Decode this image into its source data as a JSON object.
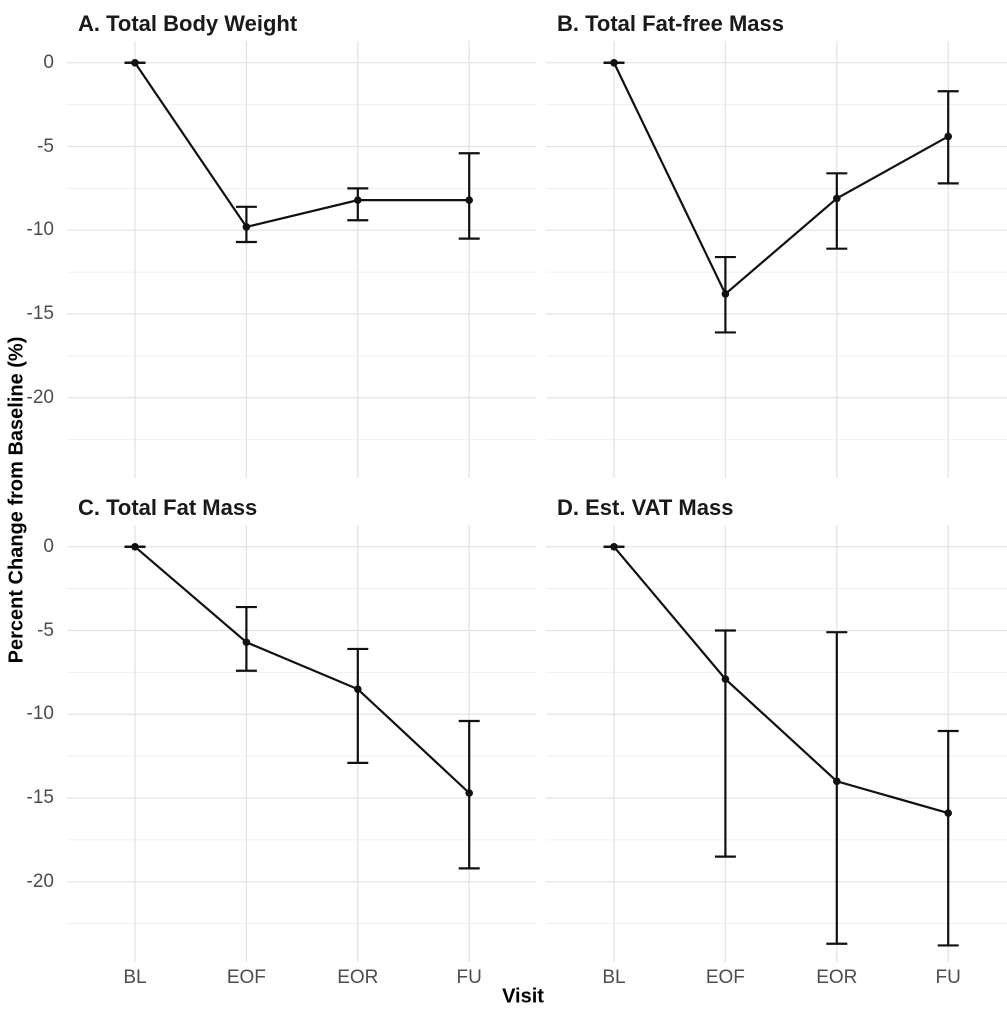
{
  "figure": {
    "y_axis_title": "Percent Change from Baseline (%)",
    "x_axis_title": "Visit",
    "x_tick_labels": [
      "BL",
      "EOF",
      "EOR",
      "FU"
    ],
    "y_tick_labels": [
      "0",
      "-5",
      "-10",
      "-15",
      "-20"
    ],
    "y_tick_values": [
      0,
      -5,
      -10,
      -15,
      -20
    ],
    "y_minor_values": [
      -2.5,
      -7.5,
      -12.5,
      -17.5,
      -22.5
    ]
  },
  "colors": {
    "background": "#ffffff",
    "grid_major": "#e4e4e4",
    "grid_minor": "#f1f1f1",
    "data": "#111111",
    "tick_label": "#4d4d4d",
    "title": "#1a1a1a"
  },
  "chart_data": [
    {
      "type": "line",
      "title": "A. Total Body Weight",
      "x": [
        "BL",
        "EOF",
        "EOR",
        "FU"
      ],
      "values": [
        0,
        -9.8,
        -8.2,
        -8.2
      ],
      "error_low": [
        0,
        -10.7,
        -9.4,
        -10.5
      ],
      "error_high": [
        0,
        -8.6,
        -7.5,
        -5.4
      ],
      "xlabel": "Visit",
      "ylabel": "Percent Change from Baseline (%)",
      "ylim": [
        -24.9,
        1.3
      ]
    },
    {
      "type": "line",
      "title": "B. Total Fat-free Mass",
      "x": [
        "BL",
        "EOF",
        "EOR",
        "FU"
      ],
      "values": [
        0,
        -13.8,
        -8.1,
        -4.4
      ],
      "error_low": [
        0,
        -16.1,
        -11.1,
        -7.2
      ],
      "error_high": [
        0,
        -11.6,
        -6.6,
        -1.7
      ],
      "xlabel": "Visit",
      "ylabel": "Percent Change from Baseline (%)",
      "ylim": [
        -24.9,
        1.3
      ]
    },
    {
      "type": "line",
      "title": "C. Total Fat Mass",
      "x": [
        "BL",
        "EOF",
        "EOR",
        "FU"
      ],
      "values": [
        0,
        -5.7,
        -8.5,
        -14.7
      ],
      "error_low": [
        0,
        -7.4,
        -12.9,
        -19.2
      ],
      "error_high": [
        0,
        -3.6,
        -6.1,
        -10.4
      ],
      "xlabel": "Visit",
      "ylabel": "Percent Change from Baseline (%)",
      "ylim": [
        -24.9,
        1.3
      ]
    },
    {
      "type": "line",
      "title": "D. Est. VAT Mass",
      "x": [
        "BL",
        "EOF",
        "EOR",
        "FU"
      ],
      "values": [
        0,
        -7.9,
        -14.0,
        -15.9
      ],
      "error_low": [
        0,
        -18.5,
        -23.7,
        -23.8
      ],
      "error_high": [
        0,
        -5.0,
        -5.1,
        -11.0
      ],
      "xlabel": "Visit",
      "ylabel": "Percent Change from Baseline (%)",
      "ylim": [
        -24.9,
        1.3
      ]
    }
  ]
}
